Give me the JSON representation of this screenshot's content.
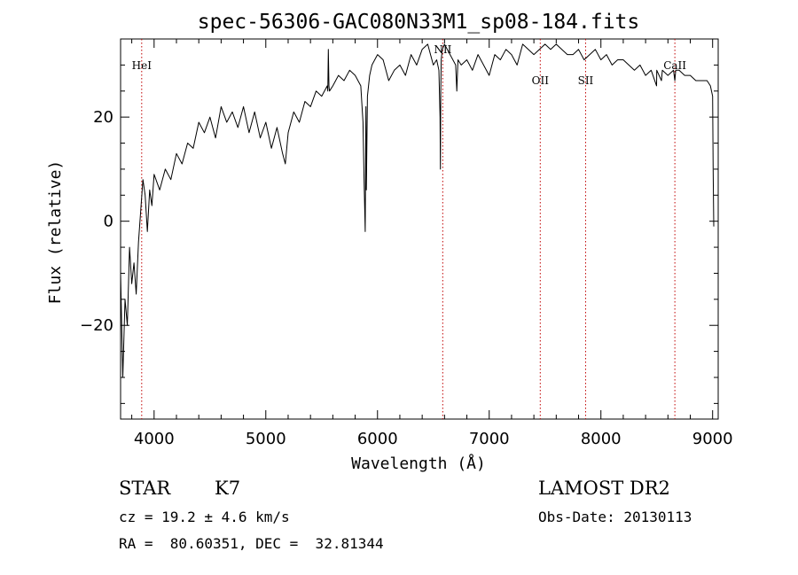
{
  "chart_data": {
    "type": "line",
    "title": "spec-56306-GAC080N33M1_sp08-184.fits",
    "xlabel": "Wavelength (Å)",
    "ylabel": "Flux (relative)",
    "xlim": [
      3700,
      9050
    ],
    "ylim": [
      -38,
      35
    ],
    "xticks": [
      4000,
      5000,
      6000,
      7000,
      8000,
      9000
    ],
    "xtick_labels": [
      "4000",
      "5000",
      "6000",
      "7000",
      "8000",
      "9000"
    ],
    "yticks": [
      -20,
      0,
      20
    ],
    "ytick_labels": [
      "−20",
      "0",
      "20"
    ],
    "grid": false,
    "lines": [
      {
        "label": "HeI",
        "x": 3889
      },
      {
        "label": "NII",
        "x": 6584
      },
      {
        "label": "OII",
        "x": 7457
      },
      {
        "label": "SII",
        "x": 7863
      },
      {
        "label": "CaII",
        "x": 8662
      }
    ],
    "series": [
      {
        "color": "#000000",
        "x": [
          3700,
          3720,
          3740,
          3760,
          3780,
          3800,
          3820,
          3840,
          3860,
          3880,
          3900,
          3920,
          3940,
          3960,
          3980,
          4000,
          4050,
          4100,
          4150,
          4200,
          4250,
          4300,
          4350,
          4400,
          4450,
          4500,
          4550,
          4600,
          4650,
          4700,
          4750,
          4800,
          4850,
          4900,
          4950,
          5000,
          5050,
          5100,
          5150,
          5175,
          5200,
          5250,
          5300,
          5350,
          5400,
          5450,
          5500,
          5550,
          5555,
          5560,
          5565,
          5570,
          5600,
          5650,
          5700,
          5750,
          5800,
          5850,
          5870,
          5880,
          5890,
          5896,
          5900,
          5910,
          5930,
          5950,
          6000,
          6050,
          6100,
          6150,
          6200,
          6250,
          6300,
          6350,
          6400,
          6450,
          6500,
          6530,
          6550,
          6560,
          6563,
          6566,
          6570,
          6580,
          6600,
          6650,
          6700,
          6710,
          6720,
          6750,
          6800,
          6850,
          6900,
          6950,
          7000,
          7050,
          7100,
          7150,
          7200,
          7250,
          7300,
          7350,
          7400,
          7450,
          7500,
          7550,
          7600,
          7650,
          7700,
          7750,
          7800,
          7850,
          7900,
          7950,
          8000,
          8050,
          8100,
          8150,
          8200,
          8250,
          8300,
          8350,
          8400,
          8450,
          8498,
          8500,
          8542,
          8550,
          8600,
          8650,
          8662,
          8670,
          8700,
          8750,
          8800,
          8850,
          8900,
          8950,
          8980,
          9000,
          9005,
          9010
        ],
        "y": [
          -10,
          -30,
          -15,
          -20,
          -5,
          -12,
          -8,
          -14,
          -4,
          2,
          8,
          5,
          -2,
          6,
          3,
          9,
          6,
          10,
          8,
          13,
          11,
          15,
          14,
          19,
          17,
          20,
          16,
          22,
          19,
          21,
          18,
          22,
          17,
          21,
          16,
          19,
          14,
          18,
          13,
          11,
          17,
          21,
          19,
          23,
          22,
          25,
          24,
          26,
          25,
          33,
          26,
          25,
          26,
          28,
          27,
          29,
          28,
          26,
          19,
          8,
          -2,
          22,
          6,
          24,
          28,
          30,
          32,
          31,
          27,
          29,
          30,
          28,
          32,
          30,
          33,
          34,
          30,
          31,
          29,
          20,
          10,
          25,
          31,
          33,
          34,
          32,
          30,
          25,
          31,
          30,
          31,
          29,
          32,
          30,
          28,
          32,
          31,
          33,
          32,
          30,
          34,
          33,
          32,
          33,
          34,
          33,
          34,
          33,
          32,
          32,
          33,
          31,
          32,
          33,
          31,
          32,
          30,
          31,
          31,
          30,
          29,
          30,
          28,
          29,
          26,
          29,
          27,
          29,
          28,
          29,
          27,
          29,
          29,
          28,
          28,
          27,
          27,
          27,
          26,
          24,
          10,
          -1
        ]
      }
    ]
  },
  "info": {
    "object_class": "STAR",
    "subclass": "K7",
    "survey": "LAMOST DR2",
    "cz": "cz = 19.2 ± 4.6 km/s",
    "obs_date": "Obs-Date: 20130113",
    "coords": "RA =  80.60351, DEC =  32.81344"
  }
}
